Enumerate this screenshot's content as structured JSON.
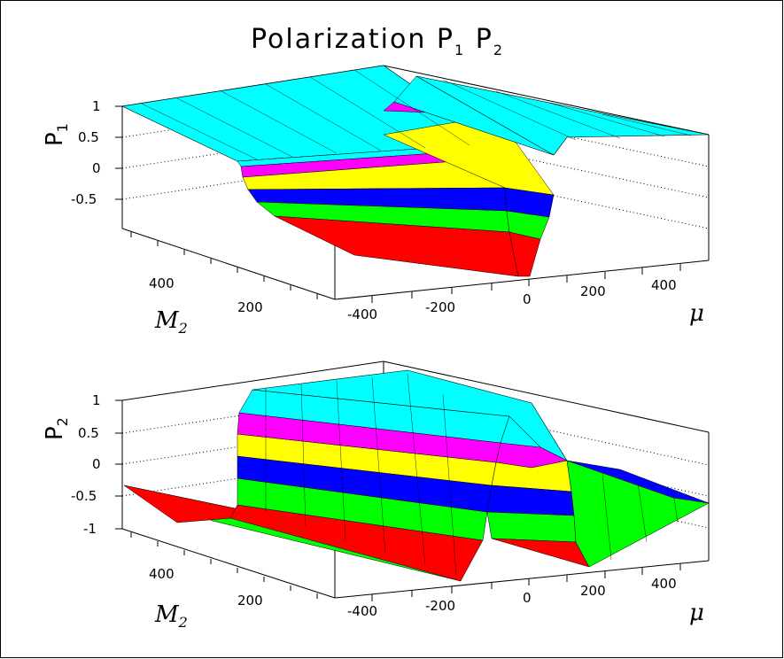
{
  "title": {
    "text": "Polarization P",
    "sub1": "1",
    "mid": " P",
    "sub2": "2"
  },
  "band_colors": [
    "#ff0000",
    "#00ff00",
    "#0000ff",
    "#ffff00",
    "#ff00ff",
    "#00ffff"
  ],
  "chart_data": [
    {
      "type": "surface",
      "name": "P1",
      "zlabel": {
        "base": "P",
        "sub": "1"
      },
      "xlabel": "μ",
      "ylabel": {
        "base": "M",
        "sub": "2"
      },
      "x_ticks": [
        "-400",
        "-200",
        "0",
        "200",
        "400"
      ],
      "y_ticks": [
        "400",
        "200"
      ],
      "z_ticks": [
        "1",
        "0.5",
        "0",
        "-0.5"
      ],
      "xlim": [
        -500,
        500
      ],
      "ylim": [
        100,
        500
      ],
      "zlim": [
        -1,
        1
      ],
      "surface_profile": {
        "description_values_mu": [
          -500,
          -300,
          -200,
          -100,
          -50,
          0,
          50,
          100,
          300,
          500
        ],
        "P1_at_M2_500": [
          1.0,
          1.0,
          0.9,
          -0.6,
          -0.9,
          -1.0,
          -0.7,
          0.6,
          1.0,
          1.0
        ]
      }
    },
    {
      "type": "surface",
      "name": "P2",
      "zlabel": {
        "base": "P",
        "sub": "2"
      },
      "xlabel": "μ",
      "ylabel": {
        "base": "M",
        "sub": "2"
      },
      "x_ticks": [
        "-400",
        "-200",
        "0",
        "200",
        "400"
      ],
      "y_ticks": [
        "400",
        "200"
      ],
      "z_ticks": [
        "1",
        "0.5",
        "0",
        "-0.5",
        "-1"
      ],
      "xlim": [
        -500,
        500
      ],
      "ylim": [
        100,
        500
      ],
      "zlim": [
        -1,
        1
      ],
      "surface_profile": {
        "description_values_mu": [
          -500,
          -300,
          -200,
          -100,
          0,
          100,
          200,
          300,
          500
        ],
        "P2_at_M2_500": [
          -0.3,
          -0.9,
          0.9,
          1.0,
          0.5,
          -0.6,
          -0.9,
          -0.6,
          -0.1
        ]
      }
    }
  ]
}
